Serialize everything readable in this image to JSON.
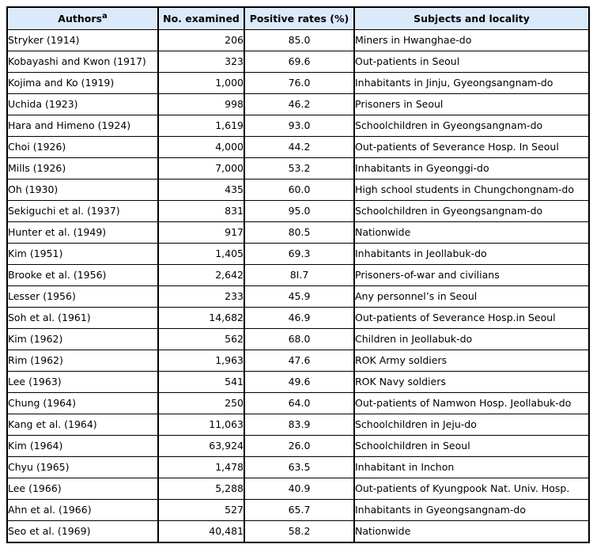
{
  "colors": {
    "header_bg": "#dbeafb",
    "border": "#000000",
    "text": "#000000",
    "page_bg": "#ffffff"
  },
  "chart_data": {
    "type": "table",
    "columns": [
      {
        "label": "Authors",
        "superscript": "a",
        "align": "left"
      },
      {
        "label": "No. examined",
        "align": "right"
      },
      {
        "label": "Positive rates (%)",
        "align": "center"
      },
      {
        "label": "Subjects and locality",
        "align": "left"
      }
    ],
    "rows": [
      [
        "Stryker (1914)",
        "206",
        "85.0",
        "Miners in Hwanghae-do"
      ],
      [
        "Kobayashi and Kwon (1917)",
        "323",
        "69.6",
        "Out-patients in Seoul"
      ],
      [
        "Kojima and Ko (1919)",
        "1,000",
        "76.0",
        "Inhabitants in Jinju, Gyeongsangnam-do"
      ],
      [
        "Uchida (1923)",
        "998",
        "46.2",
        "Prisoners in Seoul"
      ],
      [
        "Hara and Himeno (1924)",
        "1,619",
        "93.0",
        "Schoolchildren in Gyeongsangnam-do"
      ],
      [
        "Choi (1926)",
        "4,000",
        "44.2",
        "Out-patients of Severance Hosp. In Seoul"
      ],
      [
        "Mills (1926)",
        "7,000",
        "53.2",
        "Inhabitants in Gyeonggi-do"
      ],
      [
        "Oh (1930)",
        "435",
        "60.0",
        "High school students in Chungchongnam-do"
      ],
      [
        "Sekiguchi et al. (1937)",
        "831",
        "95.0",
        "Schoolchildren in Gyeongsangnam-do"
      ],
      [
        "Hunter et al. (1949)",
        "917",
        "80.5",
        "Nationwide"
      ],
      [
        "Kim (1951)",
        "1,405",
        "69.3",
        "Inhabitants in Jeollabuk-do"
      ],
      [
        "Brooke et al. (1956)",
        "2,642",
        "8I.7",
        "Prisoners-of-war and civilians"
      ],
      [
        "Lesser (1956)",
        "233",
        "45.9",
        "Any personnel’s in Seoul"
      ],
      [
        "Soh et al. (1961)",
        "14,682",
        "46.9",
        "Out-patients of Severance Hosp.in Seoul"
      ],
      [
        "Kim (1962)",
        "562",
        "68.0",
        "Children in Jeollabuk-do"
      ],
      [
        "Rim (1962)",
        "1,963",
        "47.6",
        "ROK Army soldiers"
      ],
      [
        "Lee (1963)",
        "541",
        "49.6",
        "ROK Navy soldiers"
      ],
      [
        "Chung (1964)",
        "250",
        "64.0",
        "Out-patients of Namwon Hosp. Jeollabuk-do"
      ],
      [
        "Kang et al. (1964)",
        "11,063",
        "83.9",
        "Schoolchildren in Jeju-do"
      ],
      [
        "Kim (1964)",
        "63,924",
        "26.0",
        "Schoolchildren in Seoul"
      ],
      [
        "Chyu (1965)",
        "1,478",
        "63.5",
        "Inhabitant in Inchon"
      ],
      [
        "Lee (1966)",
        "5,288",
        "40.9",
        "Out-patients of Kyungpook Nat. Univ. Hosp."
      ],
      [
        "Ahn et al. (1966)",
        "527",
        "65.7",
        "Inhabitants in Gyeongsangnam-do"
      ],
      [
        "Seo et al. (1969)",
        "40,481",
        "58.2",
        "Nationwide"
      ]
    ]
  }
}
